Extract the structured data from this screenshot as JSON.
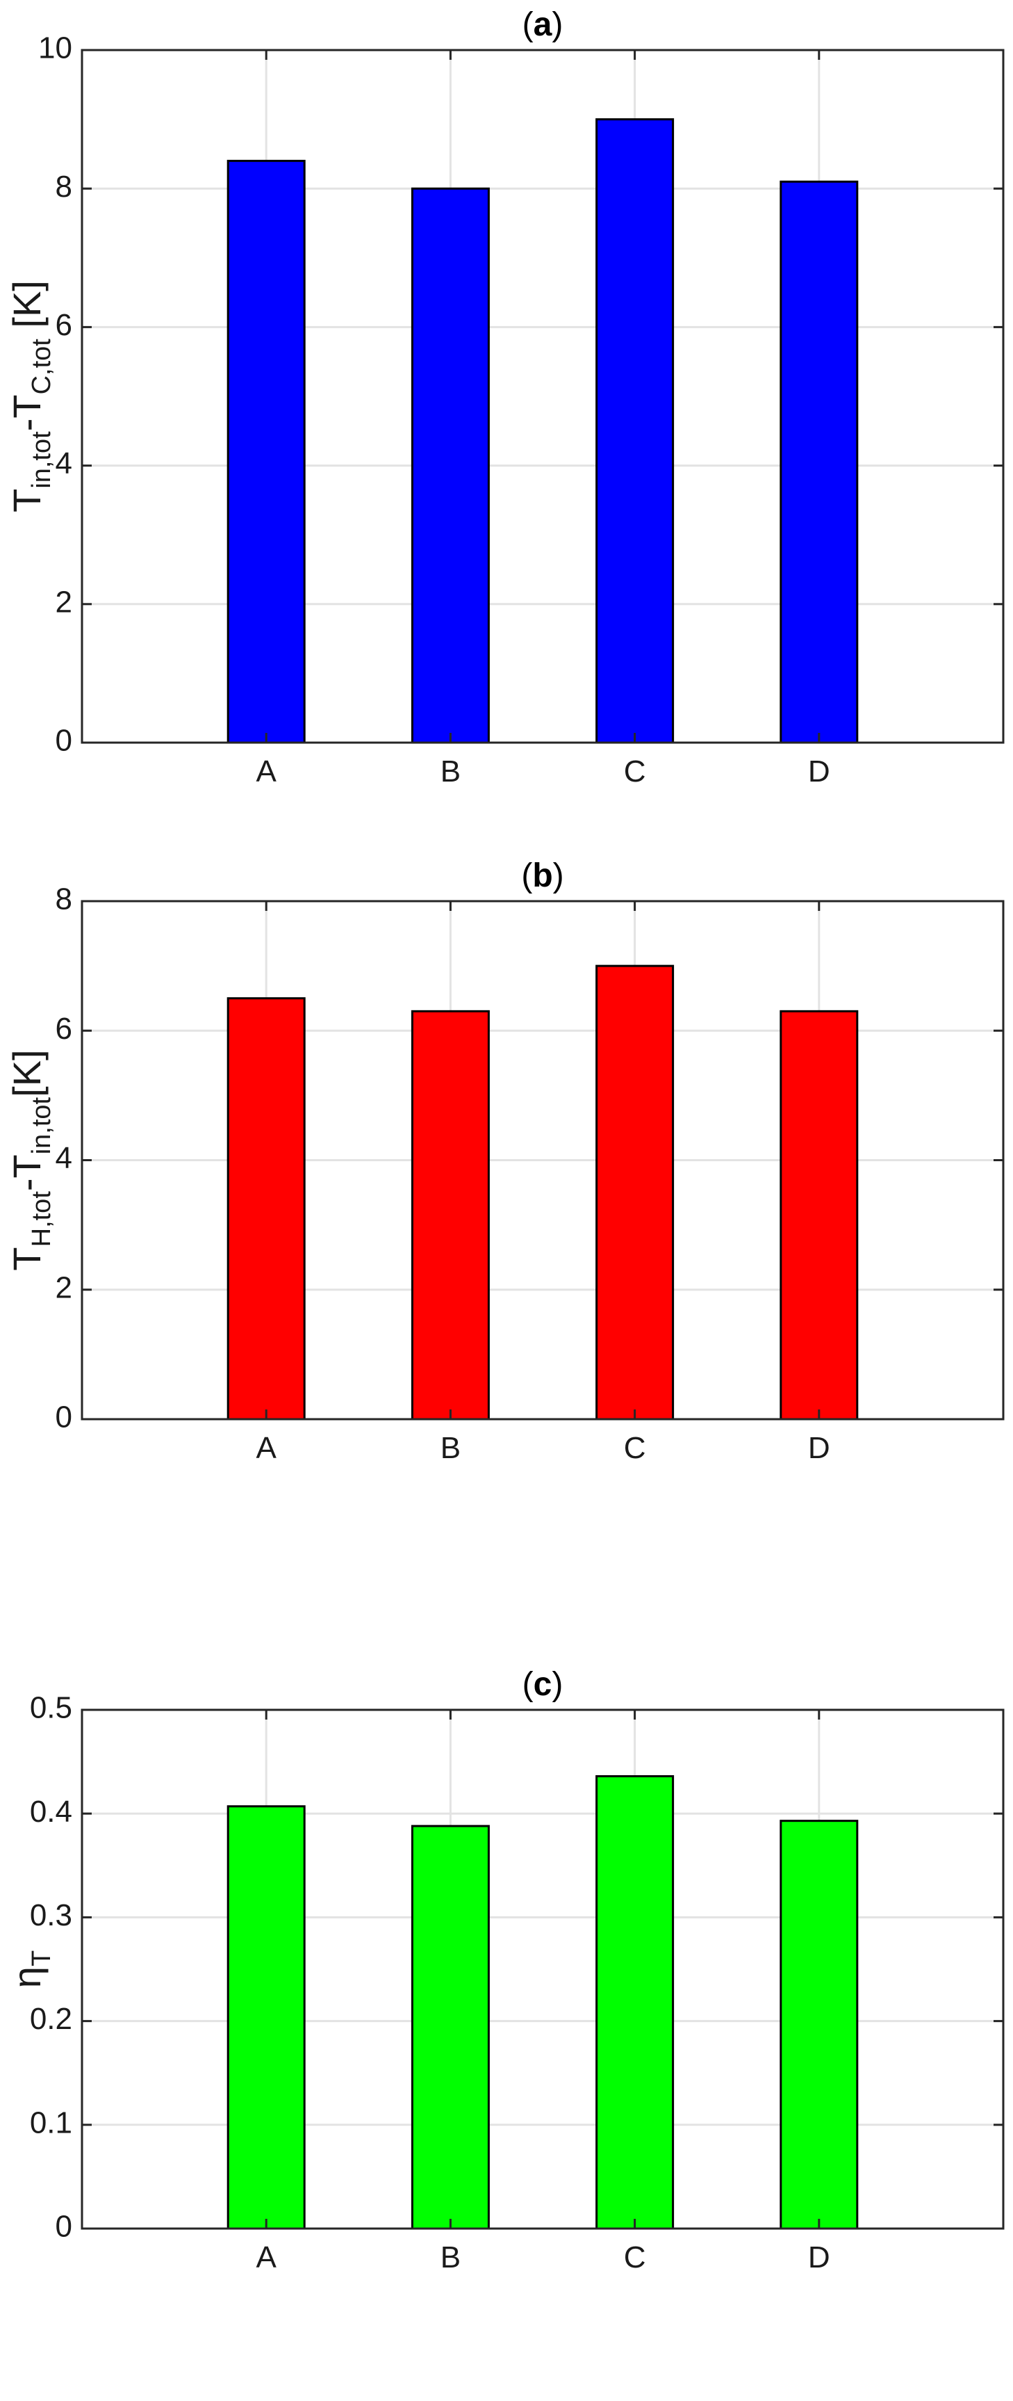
{
  "chart_data": [
    {
      "type": "bar",
      "title_prefix": "(",
      "title_letter": "a",
      "title_suffix": ")",
      "categories": [
        "A",
        "B",
        "C",
        "D"
      ],
      "values": [
        8.4,
        8.0,
        9.0,
        8.1
      ],
      "ylim": [
        0,
        10
      ],
      "yticks": [
        0,
        2,
        4,
        6,
        8,
        10
      ],
      "ytick_labels": [
        "0",
        "2",
        "4",
        "6",
        "8",
        "10"
      ],
      "ylabel_parts": [
        {
          "text": "T",
          "sub": false
        },
        {
          "text": "in,tot",
          "sub": true
        },
        {
          "text": "-T",
          "sub": false
        },
        {
          "text": "C,tot",
          "sub": true
        },
        {
          "text": " [K]",
          "sub": false
        }
      ],
      "bar_color": "#0000ff",
      "grid": true
    },
    {
      "type": "bar",
      "title_prefix": "(",
      "title_letter": "b",
      "title_suffix": ")",
      "categories": [
        "A",
        "B",
        "C",
        "D"
      ],
      "values": [
        6.5,
        6.3,
        7.0,
        6.3
      ],
      "ylim": [
        0,
        8
      ],
      "yticks": [
        0,
        2,
        4,
        6,
        8
      ],
      "ytick_labels": [
        "0",
        "2",
        "4",
        "6",
        "8"
      ],
      "ylabel_parts": [
        {
          "text": "T",
          "sub": false
        },
        {
          "text": "H,tot",
          "sub": true
        },
        {
          "text": "-T",
          "sub": false
        },
        {
          "text": "in,tot",
          "sub": true
        },
        {
          "text": "[K]",
          "sub": false
        }
      ],
      "bar_color": "#ff0000",
      "grid": true
    },
    {
      "type": "bar",
      "title_prefix": "(",
      "title_letter": "c",
      "title_suffix": ")",
      "categories": [
        "A",
        "B",
        "C",
        "D"
      ],
      "values": [
        0.407,
        0.388,
        0.436,
        0.393
      ],
      "ylim": [
        0,
        0.5
      ],
      "yticks": [
        0,
        0.1,
        0.2,
        0.3,
        0.4,
        0.5
      ],
      "ytick_labels": [
        "0",
        "0.1",
        "0.2",
        "0.3",
        "0.4",
        "0.5"
      ],
      "ylabel_parts": [
        {
          "text": "η",
          "sub": false
        },
        {
          "text": "T",
          "sub": true
        }
      ],
      "bar_color": "#00ff00",
      "grid": true
    }
  ]
}
